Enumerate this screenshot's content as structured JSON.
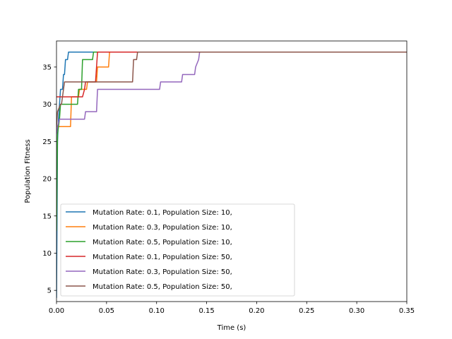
{
  "chart_data": {
    "type": "line",
    "title": "",
    "xlabel": "Time (s)",
    "ylabel": "Population Fitness",
    "xlim": [
      0.0,
      0.35
    ],
    "ylim": [
      3.5,
      38.5
    ],
    "x_ticks": [
      0.0,
      0.05,
      0.1,
      0.15,
      0.2,
      0.25,
      0.3,
      0.35
    ],
    "x_tick_labels": [
      "0.00",
      "0.05",
      "0.10",
      "0.15",
      "0.20",
      "0.25",
      "0.30",
      "0.35"
    ],
    "y_ticks": [
      5,
      10,
      15,
      20,
      25,
      30,
      35
    ],
    "y_tick_labels": [
      "5",
      "10",
      "15",
      "20",
      "25",
      "30",
      "35"
    ],
    "grid": false,
    "legend_position": "lower-left",
    "series": [
      {
        "name": "Mutation Rate: 0.1, Population Size: 10,",
        "color": "#1f77b4",
        "x": [
          0.0,
          0.001,
          0.002,
          0.003,
          0.004,
          0.005,
          0.006,
          0.007,
          0.008,
          0.009,
          0.01,
          0.011,
          0.012,
          0.013,
          0.35
        ],
        "y": [
          4,
          25,
          28,
          30,
          32,
          32,
          32,
          34,
          34,
          36,
          36,
          36,
          37,
          37,
          37
        ]
      },
      {
        "name": "Mutation Rate: 0.3, Population Size: 10,",
        "color": "#ff7f0e",
        "x": [
          0.0,
          0.001,
          0.002,
          0.007,
          0.008,
          0.014,
          0.015,
          0.022,
          0.023,
          0.03,
          0.031,
          0.04,
          0.041,
          0.052,
          0.053,
          0.35
        ],
        "y": [
          27,
          27,
          27,
          27,
          27,
          27,
          31,
          31,
          32,
          32,
          33,
          33,
          35,
          35,
          37,
          37
        ]
      },
      {
        "name": "Mutation Rate: 0.5, Population Size: 10,",
        "color": "#2ca02c",
        "x": [
          0.0,
          0.001,
          0.003,
          0.004,
          0.008,
          0.009,
          0.021,
          0.022,
          0.025,
          0.026,
          0.036,
          0.037,
          0.039,
          0.04,
          0.35
        ],
        "y": [
          13,
          26,
          28,
          30,
          30,
          30,
          30,
          32,
          32,
          36,
          36,
          37,
          37,
          37,
          37
        ]
      },
      {
        "name": "Mutation Rate: 0.1, Population Size: 50,",
        "color": "#d62728",
        "x": [
          0.0,
          0.025,
          0.026,
          0.028,
          0.029,
          0.039,
          0.041,
          0.35
        ],
        "y": [
          31,
          31,
          31,
          32,
          33,
          33,
          37,
          37
        ]
      },
      {
        "name": "Mutation Rate: 0.3, Population Size: 50,",
        "color": "#9467bd",
        "x": [
          0.0,
          0.001,
          0.003,
          0.004,
          0.005,
          0.006,
          0.007,
          0.028,
          0.029,
          0.035,
          0.036,
          0.04,
          0.041,
          0.103,
          0.104,
          0.125,
          0.126,
          0.138,
          0.139,
          0.142,
          0.143,
          0.35
        ],
        "y": [
          26,
          27,
          28,
          28,
          28,
          28,
          28,
          28,
          29,
          29,
          29,
          29,
          32,
          32,
          33,
          33,
          34,
          34,
          35,
          36,
          37,
          37
        ]
      },
      {
        "name": "Mutation Rate: 0.5, Population Size: 50,",
        "color": "#8c564b",
        "x": [
          0.0,
          0.001,
          0.004,
          0.005,
          0.006,
          0.007,
          0.008,
          0.076,
          0.077,
          0.08,
          0.081,
          0.082,
          0.35
        ],
        "y": [
          27,
          29,
          30,
          30,
          31,
          32,
          33,
          33,
          36,
          36,
          37,
          37,
          37
        ]
      }
    ]
  }
}
